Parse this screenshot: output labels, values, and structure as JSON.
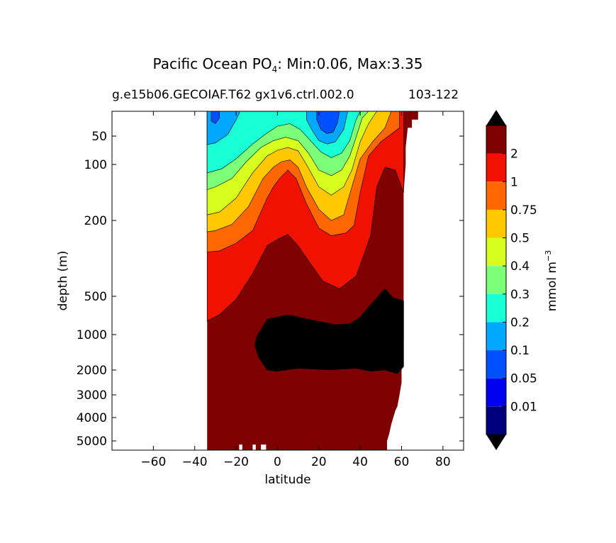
{
  "title": {
    "prefix": "Pacific Ocean PO",
    "subscript": "4",
    "suffix": ": Min:0.06, Max:3.35"
  },
  "subtitle": {
    "case_name": "g.e15b06.GECOIAF.T62 gx1v6.ctrl.002.0",
    "years": "103-122"
  },
  "chart_data": {
    "type": "contour",
    "title": "Pacific Ocean PO4: Min:0.06, Max:3.35",
    "xlabel": "latitude",
    "ylabel": "depth (m)",
    "xlim": [
      -80,
      90
    ],
    "ylim_depth": [
      5500,
      20
    ],
    "y_scale": "log-like (stretched)",
    "x_ticks": [
      -60,
      -40,
      -20,
      0,
      20,
      40,
      60,
      80
    ],
    "x_tick_labels": [
      "−60",
      "−40",
      "−20",
      "0",
      "20",
      "40",
      "60",
      "80"
    ],
    "y_ticks": [
      50,
      100,
      200,
      500,
      1000,
      2000,
      3000,
      4000,
      5000
    ],
    "y_tick_labels": [
      "50",
      "100",
      "200",
      "500",
      "1000",
      "2000",
      "3000",
      "4000",
      "5000"
    ],
    "data_extent_latitude": [
      -34,
      68
    ],
    "contour_levels": [
      0.01,
      0.05,
      0.1,
      0.2,
      0.3,
      0.4,
      0.5,
      0.75,
      1,
      2
    ],
    "colorbar": {
      "label": "mmol m",
      "label_superscript": "−3",
      "tick_labels": [
        "0.01",
        "0.05",
        "0.1",
        "0.2",
        "0.3",
        "0.4",
        "0.5",
        "0.75",
        "1",
        "2"
      ],
      "colors": [
        "#00007f",
        "#0000ee",
        "#0050ff",
        "#00a8ff",
        "#19ffd6",
        "#7cff79",
        "#d6ff20",
        "#ffc800",
        "#ff6800",
        "#f01200",
        "#7f0000"
      ],
      "extend": "both",
      "extend_low_color": "#000000",
      "extend_high_color": "#000000"
    },
    "min": 0.06,
    "max": 3.35,
    "notes": "Surface minima near 30S-20S and 20N-30N; high-concentration band (>3) between ~700 m and ~2000 m from 10S to 60N"
  }
}
